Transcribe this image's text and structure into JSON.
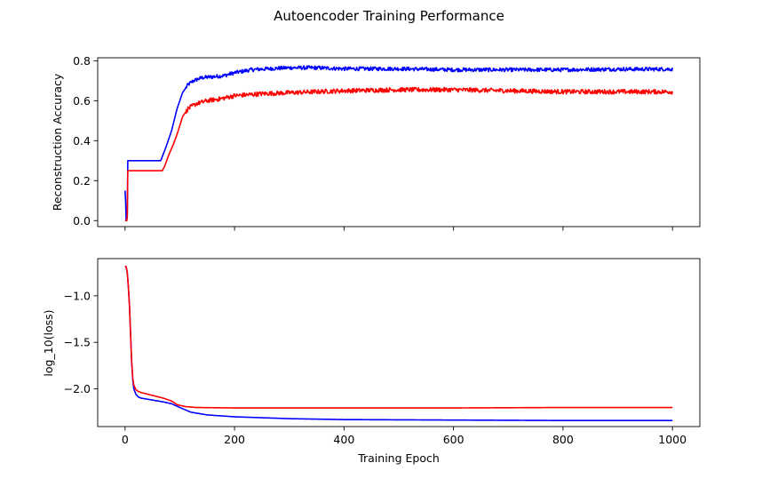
{
  "figure": {
    "title": "Autoencoder Training Performance"
  },
  "chart_data": [
    {
      "type": "line",
      "title": "",
      "xlabel": "",
      "ylabel": "Reconstruction Accuracy",
      "xlim": [
        -50,
        1050
      ],
      "ylim": [
        -0.03,
        0.815
      ],
      "xticks": [
        0,
        200,
        400,
        600,
        800,
        1000
      ],
      "show_xtick_labels": false,
      "yticks": [
        0.0,
        0.2,
        0.4,
        0.6,
        0.8
      ],
      "ytick_labels": [
        "0.0",
        "0.2",
        "0.4",
        "0.6",
        "0.8"
      ],
      "grid": false,
      "series": [
        {
          "color": "#0000ff",
          "noise": 0.006,
          "points": [
            [
              0,
              0.15
            ],
            [
              1,
              0.1
            ],
            [
              2,
              0.0
            ],
            [
              3,
              0.0
            ],
            [
              4,
              0.02
            ],
            [
              5,
              0.3
            ],
            [
              65,
              0.3
            ],
            [
              68,
              0.32
            ],
            [
              75,
              0.37
            ],
            [
              85,
              0.45
            ],
            [
              95,
              0.56
            ],
            [
              105,
              0.64
            ],
            [
              115,
              0.68
            ],
            [
              125,
              0.7
            ],
            [
              140,
              0.715
            ],
            [
              160,
              0.72
            ],
            [
              180,
              0.725
            ],
            [
              200,
              0.74
            ],
            [
              230,
              0.755
            ],
            [
              260,
              0.76
            ],
            [
              300,
              0.765
            ],
            [
              350,
              0.765
            ],
            [
              400,
              0.76
            ],
            [
              500,
              0.76
            ],
            [
              600,
              0.755
            ],
            [
              700,
              0.755
            ],
            [
              800,
              0.755
            ],
            [
              900,
              0.758
            ],
            [
              1000,
              0.758
            ]
          ]
        },
        {
          "color": "#ff0000",
          "noise": 0.007,
          "points": [
            [
              0,
              0.0
            ],
            [
              2,
              0.0
            ],
            [
              3,
              0.0
            ],
            [
              4,
              0.02
            ],
            [
              5,
              0.25
            ],
            [
              68,
              0.25
            ],
            [
              72,
              0.27
            ],
            [
              80,
              0.33
            ],
            [
              88,
              0.38
            ],
            [
              96,
              0.44
            ],
            [
              105,
              0.52
            ],
            [
              115,
              0.56
            ],
            [
              130,
              0.585
            ],
            [
              150,
              0.6
            ],
            [
              175,
              0.61
            ],
            [
              200,
              0.625
            ],
            [
              250,
              0.635
            ],
            [
              300,
              0.64
            ],
            [
              350,
              0.645
            ],
            [
              400,
              0.65
            ],
            [
              500,
              0.655
            ],
            [
              600,
              0.655
            ],
            [
              700,
              0.65
            ],
            [
              800,
              0.645
            ],
            [
              900,
              0.645
            ],
            [
              1000,
              0.645
            ]
          ]
        }
      ]
    },
    {
      "type": "line",
      "title": "",
      "xlabel": "Training Epoch",
      "ylabel": "log_10(loss)",
      "xlim": [
        -50,
        1050
      ],
      "ylim": [
        -2.405,
        -0.6
      ],
      "xticks": [
        0,
        200,
        400,
        600,
        800,
        1000
      ],
      "xtick_labels": [
        "0",
        "200",
        "400",
        "600",
        "800",
        "1000"
      ],
      "show_xtick_labels": true,
      "yticks": [
        -1.0,
        -1.5,
        -2.0
      ],
      "ytick_labels": [
        "−1.0",
        "−1.5",
        "−2.0"
      ],
      "grid": false,
      "series": [
        {
          "color": "#0000ff",
          "noise": 0,
          "points": [
            [
              0,
              -0.68
            ],
            [
              2,
              -0.69
            ],
            [
              4,
              -0.75
            ],
            [
              6,
              -0.9
            ],
            [
              8,
              -1.1
            ],
            [
              10,
              -1.4
            ],
            [
              12,
              -1.7
            ],
            [
              14,
              -1.9
            ],
            [
              16,
              -2.0
            ],
            [
              20,
              -2.06
            ],
            [
              25,
              -2.09
            ],
            [
              30,
              -2.1
            ],
            [
              50,
              -2.12
            ],
            [
              70,
              -2.14
            ],
            [
              85,
              -2.16
            ],
            [
              100,
              -2.2
            ],
            [
              120,
              -2.25
            ],
            [
              150,
              -2.28
            ],
            [
              200,
              -2.3
            ],
            [
              300,
              -2.32
            ],
            [
              400,
              -2.33
            ],
            [
              600,
              -2.335
            ],
            [
              800,
              -2.34
            ],
            [
              1000,
              -2.34
            ]
          ]
        },
        {
          "color": "#ff0000",
          "noise": 0,
          "points": [
            [
              0,
              -0.68
            ],
            [
              2,
              -0.69
            ],
            [
              4,
              -0.75
            ],
            [
              6,
              -0.9
            ],
            [
              8,
              -1.1
            ],
            [
              10,
              -1.4
            ],
            [
              12,
              -1.7
            ],
            [
              14,
              -1.88
            ],
            [
              16,
              -1.96
            ],
            [
              20,
              -2.01
            ],
            [
              25,
              -2.03
            ],
            [
              30,
              -2.04
            ],
            [
              50,
              -2.07
            ],
            [
              70,
              -2.1
            ],
            [
              85,
              -2.13
            ],
            [
              95,
              -2.17
            ],
            [
              110,
              -2.19
            ],
            [
              130,
              -2.2
            ],
            [
              200,
              -2.205
            ],
            [
              400,
              -2.205
            ],
            [
              600,
              -2.205
            ],
            [
              800,
              -2.2
            ],
            [
              1000,
              -2.2
            ]
          ]
        }
      ]
    }
  ]
}
